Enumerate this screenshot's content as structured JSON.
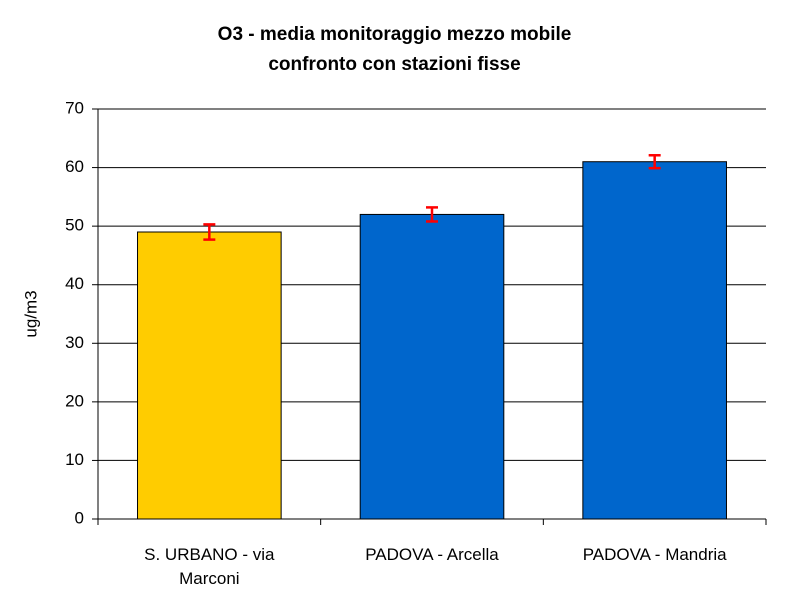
{
  "chart_data": {
    "type": "bar",
    "title": "O3 - media monitoraggio mezzo mobile\nconfronto con stazioni fisse",
    "y_label": "ug/m3",
    "categories": [
      "S. URBANO - via Marconi",
      "PADOVA - Arcella",
      "PADOVA - Mandria"
    ],
    "values": [
      49,
      52,
      61
    ],
    "errors": [
      1.3,
      1.2,
      1.1
    ],
    "colors": [
      "#ffcc00",
      "#0066cc",
      "#0066cc"
    ],
    "error_color": "#ff0000",
    "ylim": [
      0,
      70
    ],
    "yticks": [
      0,
      10,
      20,
      30,
      40,
      50,
      60,
      70
    ],
    "grid": true
  }
}
